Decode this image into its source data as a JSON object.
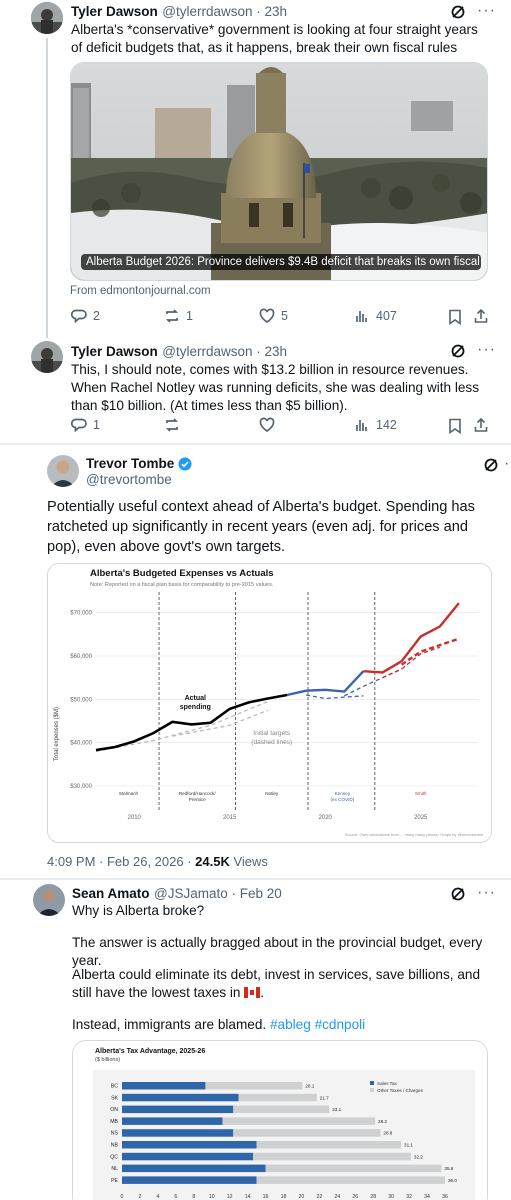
{
  "tweet1": {
    "name": "Tyler Dawson",
    "handle": "@tylerrdawson · 23h",
    "text": "Alberta's *conservative* government is looking at four straight years of deficit budgets that, as it happens, break their own fiscal rules",
    "link_card": {
      "headline": "Alberta Budget 2026: Province delivers $9.4B deficit that breaks its own fiscal ...",
      "source": "From edmontonjournal.com"
    },
    "actions": {
      "replies": "2",
      "reposts": "1",
      "likes": "5",
      "views": "407"
    }
  },
  "tweet2": {
    "name": "Tyler Dawson",
    "handle": "@tylerrdawson · 23h",
    "text": "This, I should note, comes with $13.2 billion in resource revenues. When Rachel Notley was running deficits, she was dealing with less than $10 billion. (At times less than $5 billion).",
    "actions": {
      "replies": "1",
      "reposts": "",
      "likes": "",
      "views": "142"
    }
  },
  "tweet3": {
    "name": "Trevor Tombe",
    "handle": "@trevortombe",
    "text": "Potentially useful context ahead of Alberta's budget. Spending has ratcheted up significantly in recent years (even adj. for prices and pop), even above govt's own targets.",
    "timestamp": "4:09 PM · Feb 26, 2026 · ",
    "views_count": "24.5K",
    "views_label": " Views"
  },
  "tweet4": {
    "name": "Sean Amato",
    "handle": "@JSJamato · Feb 20",
    "line1": "Why is Alberta broke?",
    "line2": "The answer is actually bragged about in the provincial budget, every year.",
    "line3": "Alberta could eliminate its debt, invest in services, save billions, and still have the lowest taxes in",
    "line4": "Instead, immigrants are blamed.",
    "hashtags": "#ableg #cdnpoli"
  },
  "chart_data": [
    {
      "type": "line",
      "title": "Alberta's Budgeted Expenses vs Actuals",
      "subtitle": "Note: Reported on a fiscal plan basis for comparability to pre-2015 values.",
      "ylabel": "Total expenses ($M)",
      "ylim": [
        30000,
        72000
      ],
      "xlim": [
        2008,
        2028
      ],
      "yticks": [
        "$30,000",
        "$40,000",
        "$50,000",
        "$60,000",
        "$70,000"
      ],
      "xticks": [
        "2010",
        "2015",
        "2020",
        "2025"
      ],
      "eras": [
        "Stelmach",
        "Redford/Hancock/\nPrentice",
        "Notley",
        "Kenney\n(ex COVID)",
        "Smith"
      ],
      "annotations": [
        "Actual\nspending",
        "Initial targets\n(dashed lines)"
      ],
      "source": "Source: Own calculations from ... many many places. Graph by @trevortombe",
      "series": [
        {
          "name": "Actual spending",
          "color": "#000000",
          "x": [
            2008,
            2009,
            2010,
            2011,
            2012,
            2013,
            2014,
            2015,
            2016,
            2017,
            2018
          ],
          "y": [
            38300,
            39000,
            40300,
            42200,
            44800,
            44200,
            44600,
            47800,
            49300,
            50200,
            51000
          ]
        },
        {
          "color": "#3a62b0",
          "x": [
            2018,
            2019,
            2020,
            2021,
            2022
          ],
          "y": [
            51000,
            52000,
            52200,
            51800,
            56500
          ]
        },
        {
          "color": "#c7302c",
          "x": [
            2022,
            2023,
            2024,
            2025,
            2026,
            2027
          ],
          "y": [
            56500,
            56200,
            58800,
            64500,
            66800,
            72200
          ]
        },
        {
          "color": "#c7302c",
          "x": [
            2024,
            2025,
            2026,
            2027
          ],
          "y": [
            58000,
            61000,
            62500,
            64000
          ]
        }
      ]
    },
    {
      "type": "bar",
      "title": "Alberta's Tax Advantage, 2025-26",
      "subtitle": "($ billions)",
      "legend": [
        "Sales Tax",
        "Other Taxes / Charges"
      ],
      "categories": [
        "BC",
        "SK",
        "ON",
        "MB",
        "NS",
        "NB",
        "QC",
        "NL",
        "PE"
      ],
      "totals": [
        20.1,
        21.7,
        23.1,
        28.2,
        28.8,
        31.1,
        32.2,
        35.6,
        36.0
      ],
      "total_labels": [
        "20.1",
        "21.7",
        "23.1",
        "28.2",
        "28.8",
        "31.1",
        "32.2",
        "35.6",
        "36.0"
      ],
      "series": [
        {
          "name": "Sales Tax",
          "values": [
            9.3,
            13.0,
            12.4,
            11.2,
            12.4,
            15.0,
            14.6,
            16.0,
            15.0
          ]
        },
        {
          "name": "Other Taxes / Charges",
          "values": [
            10.8,
            8.7,
            10.7,
            17.0,
            16.4,
            16.1,
            17.6,
            19.6,
            21.0
          ]
        }
      ],
      "xticks": [
        "0",
        "2",
        "4",
        "6",
        "8",
        "10",
        "12",
        "14",
        "16",
        "18",
        "20",
        "22",
        "24",
        "26",
        "28",
        "30",
        "32",
        "34",
        "36"
      ],
      "xlim": [
        0,
        36
      ]
    }
  ]
}
